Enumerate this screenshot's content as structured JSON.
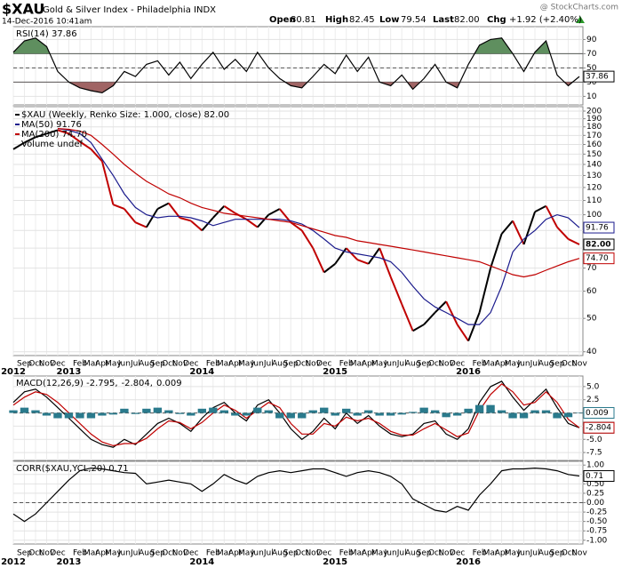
{
  "header": {
    "symbol": "$XAU",
    "name": "Gold & Silver Index - Philadelphia INDX",
    "date": "14-Dec-2016 10:41am",
    "source": "@ StockCharts.com",
    "quote": [
      {
        "label": "Open",
        "value": "80.81"
      },
      {
        "label": "High",
        "value": "82.45"
      },
      {
        "label": "Low",
        "value": "79.54"
      },
      {
        "label": "Last",
        "value": "82.00"
      },
      {
        "label": "Chg",
        "value": "+1.92 (+2.40%)"
      }
    ]
  },
  "chart_data": [
    {
      "type": "line",
      "legend": "RSI(14) 37.86",
      "ylim": [
        -2,
        108
      ],
      "yticks": [
        10,
        30,
        50,
        70,
        90
      ],
      "grid": true,
      "upper_band": 70,
      "lower_band": 30,
      "midline": 50,
      "fill_above_color": "#5f8f5f",
      "fill_below_color": "#a06464",
      "series": [
        {
          "name": "RSI(14)",
          "color": "#000000",
          "last_label": "37.86",
          "values": [
            72,
            88,
            92,
            80,
            45,
            30,
            22,
            18,
            15,
            25,
            45,
            38,
            55,
            60,
            40,
            58,
            35,
            55,
            72,
            48,
            62,
            45,
            72,
            50,
            35,
            25,
            22,
            38,
            55,
            42,
            68,
            45,
            65,
            30,
            25,
            40,
            20,
            35,
            55,
            30,
            22,
            55,
            82,
            90,
            92,
            70,
            45,
            72,
            88,
            40,
            25,
            37.86
          ]
        }
      ]
    },
    {
      "type": "line",
      "log_scale": true,
      "grid": true,
      "ylim": [
        39,
        206
      ],
      "yticks": [
        40,
        50,
        60,
        70,
        80,
        90,
        100,
        110,
        120,
        130,
        140,
        150,
        160,
        170,
        180,
        190,
        200
      ],
      "categories": [
        null,
        "Sep",
        "Oct",
        "Nov",
        "Dec",
        null,
        "Feb",
        "Mar",
        "Apr",
        "May",
        "Jun",
        "Jul",
        "Aug",
        "Sep",
        "Oct",
        "Nov",
        "Dec",
        null,
        "Feb",
        "Mar",
        "Apr",
        "May",
        "Jun",
        "Jul",
        "Aug",
        "Sep",
        "Oct",
        "Nov",
        "Dec",
        null,
        "Feb",
        "Mar",
        "Apr",
        "May",
        "Jun",
        "Jul",
        "Aug",
        "Sep",
        "Oct",
        "Nov",
        "Dec",
        null,
        "Feb",
        "Mar",
        "Apr",
        "May",
        "Jun",
        "Jul",
        "Aug",
        "Sep",
        "Oct",
        "Nov"
      ],
      "year_labels": [
        "2012",
        null,
        null,
        null,
        null,
        "2013",
        null,
        null,
        null,
        null,
        null,
        null,
        null,
        null,
        null,
        null,
        null,
        "2014",
        null,
        null,
        null,
        null,
        null,
        null,
        null,
        null,
        null,
        null,
        null,
        "2015",
        null,
        null,
        null,
        null,
        null,
        null,
        null,
        null,
        null,
        null,
        null,
        "2016",
        null,
        null,
        null,
        null,
        null,
        null,
        null,
        null,
        null,
        null
      ],
      "extra_legend": "Volume undef",
      "series": [
        {
          "name": "$XAU (Weekly, Renko Size: 1.000, close) 82.00",
          "type": "renko",
          "up_color": "#000000",
          "down_color": "#c00000",
          "last_label": "82.00",
          "values": [
            155,
            162,
            168,
            172,
            176,
            172,
            163,
            155,
            143,
            107,
            104,
            95,
            92,
            104,
            108,
            98,
            96,
            90,
            98,
            106,
            101,
            97,
            92,
            100,
            104,
            95,
            90,
            80,
            68,
            72,
            80,
            74,
            72,
            80,
            66,
            55,
            46,
            48,
            52,
            56,
            48,
            43,
            52,
            70,
            88,
            96,
            82,
            102,
            106,
            92,
            85,
            82
          ]
        },
        {
          "name": "MA(50) 91.76",
          "color": "#1a1a8c",
          "last_label": "91.76",
          "values": [
            null,
            null,
            null,
            null,
            178,
            176,
            172,
            162,
            145,
            130,
            115,
            105,
            100,
            98,
            99,
            99,
            98,
            96,
            93,
            95,
            97,
            97,
            97,
            97,
            97,
            96,
            94,
            90,
            85,
            80,
            78,
            77,
            76,
            75,
            73,
            68,
            62,
            57,
            54,
            52,
            50,
            48,
            48,
            52,
            62,
            78,
            85,
            90,
            97,
            100,
            98,
            91.76
          ]
        },
        {
          "name": "MA(200) 74.70",
          "color": "#c00000",
          "last_label": "74.70",
          "values": [
            null,
            null,
            null,
            null,
            178,
            177,
            175,
            170,
            160,
            150,
            140,
            132,
            125,
            120,
            115,
            112,
            108,
            105,
            103,
            101,
            100,
            99,
            98,
            97,
            96,
            95,
            93,
            91,
            89,
            87,
            86,
            84,
            83,
            82,
            81,
            80,
            79,
            78,
            77,
            76,
            75,
            74,
            73,
            71,
            69,
            67,
            66,
            67,
            69,
            71,
            73,
            74.7
          ]
        }
      ]
    },
    {
      "type": "line",
      "grid": true,
      "ylim": [
        -9,
        7
      ],
      "midline": 0,
      "yticks": [
        {
          "value": 5,
          "label": "5.0"
        },
        {
          "value": 2.5,
          "label": "2.5"
        },
        {
          "value": 0,
          "label": "0.0"
        },
        {
          "value": -2.5,
          "label": "-2.5"
        },
        {
          "value": -5,
          "label": "-5.0"
        },
        {
          "value": -7.5,
          "label": "-7.5"
        }
      ],
      "legend_parts": [
        {
          "text": "MACD(12,26,9) -2.795,",
          "color": "#000000"
        },
        {
          "text": "-2.804,",
          "color": "#c00000"
        },
        {
          "text": "0.009",
          "color": "#2a7a8c"
        }
      ],
      "series": [
        {
          "name": "MACD",
          "color": "#000000",
          "last_label": "-2.795",
          "values": [
            2,
            4,
            4.5,
            3,
            1,
            -1,
            -3,
            -5,
            -6,
            -6.5,
            -5,
            -6,
            -4,
            -2,
            -1,
            -2,
            -3.5,
            -1,
            1,
            2,
            0,
            -1.5,
            1.5,
            2.5,
            0,
            -3,
            -5,
            -3.5,
            -1,
            -3,
            0,
            -2,
            -0.5,
            -2.5,
            -4,
            -4.5,
            -4,
            -2,
            -1.5,
            -4,
            -5,
            -3,
            2,
            5,
            6,
            3,
            0.5,
            2.5,
            4.5,
            1,
            -2,
            -2.795
          ]
        },
        {
          "name": "Signal",
          "color": "#c00000",
          "last_label": "-2.804",
          "values": [
            1.5,
            3,
            4,
            3.5,
            2,
            0,
            -2,
            -4,
            -5.5,
            -6.2,
            -5.8,
            -5.8,
            -4.8,
            -3,
            -1.5,
            -1.8,
            -3,
            -1.8,
            0,
            1.5,
            0.5,
            -1,
            0.5,
            2,
            1,
            -2,
            -4,
            -4,
            -2,
            -2.5,
            -0.8,
            -1.5,
            -1,
            -2,
            -3.5,
            -4.2,
            -4.2,
            -3,
            -2,
            -3.2,
            -4.5,
            -3.8,
            0.5,
            3.5,
            5.5,
            4,
            1.5,
            2,
            4,
            2,
            -1.2,
            -2.804
          ]
        },
        {
          "name": "Histogram",
          "type": "bar",
          "color": "#2a7a8c",
          "last_label": "0.009",
          "values": [
            0.5,
            1,
            0.5,
            -0.5,
            -1,
            -1,
            -1,
            -1,
            -0.5,
            -0.3,
            0.8,
            -0.2,
            0.8,
            1,
            0.5,
            -0.2,
            -0.5,
            0.8,
            1,
            0.5,
            -0.5,
            -0.5,
            1,
            0.5,
            -1,
            -1,
            -1,
            0.5,
            1,
            -0.5,
            0.8,
            -0.5,
            0.5,
            -0.5,
            -0.5,
            -0.3,
            0.2,
            1,
            0.5,
            -0.8,
            -0.5,
            0.8,
            1.5,
            1.5,
            0.5,
            -1,
            -1,
            0.5,
            0.5,
            -1,
            -0.8,
            0.009
          ]
        }
      ]
    },
    {
      "type": "line",
      "grid": true,
      "ylim": [
        -1.1,
        1.1
      ],
      "midline": 0,
      "legend": "CORR($XAU,YCL,20) 0.71",
      "yticks": [
        {
          "value": 1,
          "label": "1.00"
        },
        {
          "value": 0.75,
          "label": "0.75"
        },
        {
          "value": 0.5,
          "label": "0.50"
        },
        {
          "value": 0.25,
          "label": "0.25"
        },
        {
          "value": 0,
          "label": "0.00"
        },
        {
          "value": -0.25,
          "label": "-0.25"
        },
        {
          "value": -0.5,
          "label": "-0.50"
        },
        {
          "value": -0.75,
          "label": "-0.75"
        },
        {
          "value": -1,
          "label": "-1.00"
        }
      ],
      "series": [
        {
          "name": "CORR",
          "color": "#000000",
          "last_label": "0.71",
          "values": [
            -0.3,
            -0.5,
            -0.3,
            0,
            0.3,
            0.6,
            0.85,
            0.92,
            0.9,
            0.85,
            0.8,
            0.78,
            0.5,
            0.55,
            0.6,
            0.55,
            0.5,
            0.3,
            0.5,
            0.75,
            0.6,
            0.5,
            0.7,
            0.8,
            0.85,
            0.8,
            0.85,
            0.9,
            0.9,
            0.8,
            0.7,
            0.8,
            0.85,
            0.8,
            0.7,
            0.5,
            0.1,
            -0.05,
            -0.2,
            -0.25,
            -0.1,
            -0.2,
            0.2,
            0.5,
            0.85,
            0.9,
            0.9,
            0.92,
            0.9,
            0.85,
            0.75,
            0.71
          ]
        }
      ]
    }
  ]
}
